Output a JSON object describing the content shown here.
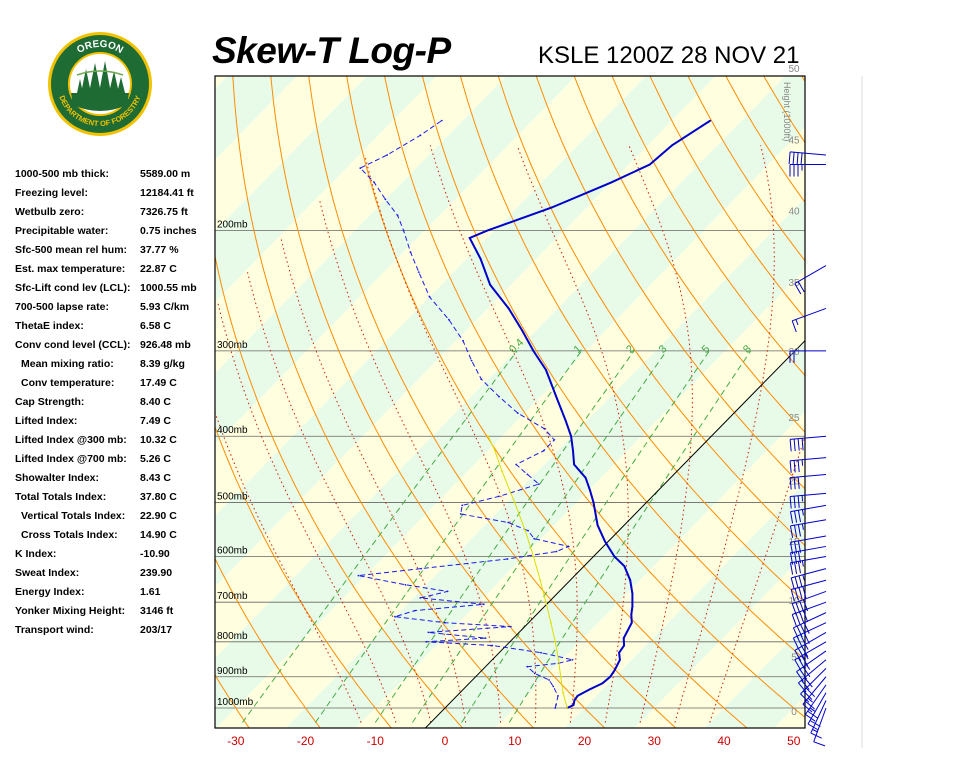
{
  "header": {
    "title": "Skew-T Log-P",
    "station": "KSLE 1200Z 28 NOV 21"
  },
  "logo": {
    "top_text": "OREGON",
    "bottom_text": "DEPARTMENT OF FORESTRY"
  },
  "indices": [
    {
      "label": "1000-500 mb thick:",
      "value": "5589.00 m"
    },
    {
      "label": "Freezing level:",
      "value": "12184.41 ft"
    },
    {
      "label": "Wetbulb zero:",
      "value": "7326.75 ft"
    },
    {
      "label": "Precipitable water:",
      "value": "0.75 inches"
    },
    {
      "label": "Sfc-500 mean rel hum:",
      "value": "37.77 %"
    },
    {
      "label": "Est. max temperature:",
      "value": "22.87 C"
    },
    {
      "label": "Sfc-Lift cond lev (LCL):",
      "value": "1000.55 mb"
    },
    {
      "label": "700-500 lapse rate:",
      "value": "5.93 C/km"
    },
    {
      "label": "ThetaE index:",
      "value": "6.58 C"
    },
    {
      "label": "Conv cond level (CCL):",
      "value": "926.48 mb"
    },
    {
      "label": "Mean mixing ratio:",
      "value": "8.39 g/kg",
      "indent": true
    },
    {
      "label": "Conv temperature:",
      "value": "17.49 C",
      "indent": true
    },
    {
      "label": "Cap Strength:",
      "value": "8.40 C"
    },
    {
      "label": "Lifted Index:",
      "value": "7.49 C"
    },
    {
      "label": "Lifted Index @300 mb:",
      "value": "10.32 C"
    },
    {
      "label": "Lifted Index @700 mb:",
      "value": "5.26 C"
    },
    {
      "label": "Showalter Index:",
      "value": "8.43 C"
    },
    {
      "label": "Total Totals Index:",
      "value": "37.80 C"
    },
    {
      "label": "Vertical Totals Index:",
      "value": "22.90 C",
      "indent": true
    },
    {
      "label": "Cross Totals Index:",
      "value": "14.90 C",
      "indent": true
    },
    {
      "label": "K Index:",
      "value": "-10.90"
    },
    {
      "label": "Sweat Index:",
      "value": "239.90"
    },
    {
      "label": "Energy Index:",
      "value": "1.61"
    },
    {
      "label": "Yonker Mixing Height:",
      "value": "3146 ft"
    },
    {
      "label": "Transport wind:",
      "value": "203/17"
    }
  ],
  "chart_data": {
    "type": "line",
    "title": "Skew-T Log-P",
    "subtitle": "KSLE 1200Z 28 NOV 21",
    "xlabel": "",
    "ylabel": "",
    "x_axis_units": "C",
    "xlim": [
      -30,
      50
    ],
    "x_ticks": [
      "-30",
      "-20",
      "-10",
      "0",
      "10",
      "20",
      "30",
      "40",
      "50"
    ],
    "y_scale": "log-pressure",
    "ylim_mb": [
      1050,
      135
    ],
    "pressure_labels": [
      "200mb",
      "300mb",
      "400mb",
      "500mb",
      "600mb",
      "700mb",
      "800mb",
      "900mb",
      "1000mb"
    ],
    "height_axis_label": "Height (1000ft)",
    "height_ticks": [
      "0",
      "5",
      "10",
      "15",
      "20",
      "25",
      "30",
      "35",
      "40",
      "45",
      "50"
    ],
    "mixing_ratio_labels": [
      "0.4",
      "1",
      "2",
      "3",
      "5",
      "8"
    ],
    "colors": {
      "background_yellow": "#ffffe0",
      "background_green": "#e8fbe8",
      "isotherm": "#d2691e",
      "dry_adiabat": "#ff8c00",
      "moist_adiabat": "#cc2200",
      "mixing_ratio": "#44aa44",
      "temperature": "#0000cc",
      "dewpoint": "#1a1aee",
      "parcel": "#dddd00",
      "axis_red": "#cc0000",
      "wind": "#0000cc"
    },
    "series": [
      {
        "style": "temperature",
        "points": [
          {
            "p": 1000,
            "t": 17.5
          },
          {
            "p": 990,
            "t": 18.0
          },
          {
            "p": 975,
            "t": 17.5
          },
          {
            "p": 960,
            "t": 17.3
          },
          {
            "p": 940,
            "t": 18.1
          },
          {
            "p": 920,
            "t": 19.1
          },
          {
            "p": 900,
            "t": 19.3
          },
          {
            "p": 880,
            "t": 19.0
          },
          {
            "p": 850,
            "t": 18.3
          },
          {
            "p": 830,
            "t": 17.2
          },
          {
            "p": 810,
            "t": 16.9
          },
          {
            "p": 790,
            "t": 15.8
          },
          {
            "p": 770,
            "t": 15.3
          },
          {
            "p": 750,
            "t": 14.8
          },
          {
            "p": 730,
            "t": 13.6
          },
          {
            "p": 710,
            "t": 12.6
          },
          {
            "p": 680,
            "t": 10.8
          },
          {
            "p": 650,
            "t": 8.6
          },
          {
            "p": 620,
            "t": 5.8
          },
          {
            "p": 600,
            "t": 3.0
          },
          {
            "p": 570,
            "t": -0.5
          },
          {
            "p": 540,
            "t": -3.8
          },
          {
            "p": 500,
            "t": -7.6
          },
          {
            "p": 480,
            "t": -9.8
          },
          {
            "p": 460,
            "t": -12.2
          },
          {
            "p": 440,
            "t": -15.7
          },
          {
            "p": 420,
            "t": -17.8
          },
          {
            "p": 400,
            "t": -20.1
          },
          {
            "p": 380,
            "t": -23.0
          },
          {
            "p": 350,
            "t": -27.8
          },
          {
            "p": 320,
            "t": -33.0
          },
          {
            "p": 300,
            "t": -37.5
          },
          {
            "p": 280,
            "t": -42.0
          },
          {
            "p": 260,
            "t": -47.0
          },
          {
            "p": 240,
            "t": -53.0
          },
          {
            "p": 220,
            "t": -58.0
          },
          {
            "p": 205,
            "t": -62.5
          },
          {
            "p": 200,
            "t": -61.0
          },
          {
            "p": 185,
            "t": -55.0
          },
          {
            "p": 170,
            "t": -50.0
          },
          {
            "p": 160,
            "t": -47.0
          },
          {
            "p": 150,
            "t": -46.5
          },
          {
            "p": 138,
            "t": -44.5
          }
        ]
      },
      {
        "style": "dewpoint",
        "points": [
          {
            "p": 1000,
            "t": 15.8
          },
          {
            "p": 990,
            "t": 15.5
          },
          {
            "p": 960,
            "t": 14.5
          },
          {
            "p": 930,
            "t": 12.5
          },
          {
            "p": 910,
            "t": 11.0
          },
          {
            "p": 890,
            "t": 8.0
          },
          {
            "p": 870,
            "t": 6.0
          },
          {
            "p": 860,
            "t": 10.0
          },
          {
            "p": 850,
            "t": 11.5
          },
          {
            "p": 830,
            "t": 6.0
          },
          {
            "p": 810,
            "t": -2.0
          },
          {
            "p": 800,
            "t": -12.0
          },
          {
            "p": 790,
            "t": -4.0
          },
          {
            "p": 775,
            "t": -13.0
          },
          {
            "p": 760,
            "t": -2.0
          },
          {
            "p": 750,
            "t": -12.0
          },
          {
            "p": 735,
            "t": -20.0
          },
          {
            "p": 720,
            "t": -18.0
          },
          {
            "p": 705,
            "t": -9.0
          },
          {
            "p": 690,
            "t": -19.0
          },
          {
            "p": 675,
            "t": -16.0
          },
          {
            "p": 660,
            "t": -23.0
          },
          {
            "p": 640,
            "t": -31.0
          },
          {
            "p": 625,
            "t": -23.0
          },
          {
            "p": 605,
            "t": -12.0
          },
          {
            "p": 590,
            "t": -6.0
          },
          {
            "p": 580,
            "t": -5.0
          },
          {
            "p": 565,
            "t": -11.0
          },
          {
            "p": 550,
            "t": -13.0
          },
          {
            "p": 535,
            "t": -17.0
          },
          {
            "p": 520,
            "t": -25.0
          },
          {
            "p": 505,
            "t": -26.0
          },
          {
            "p": 490,
            "t": -22.0
          },
          {
            "p": 470,
            "t": -18.0
          },
          {
            "p": 455,
            "t": -21.0
          },
          {
            "p": 440,
            "t": -24.0
          },
          {
            "p": 420,
            "t": -22.0
          },
          {
            "p": 405,
            "t": -22.0
          },
          {
            "p": 390,
            "t": -25.0
          },
          {
            "p": 370,
            "t": -31.0
          },
          {
            "p": 350,
            "t": -36.0
          },
          {
            "p": 330,
            "t": -41.0
          },
          {
            "p": 310,
            "t": -45.0
          },
          {
            "p": 290,
            "t": -49.0
          },
          {
            "p": 270,
            "t": -54.0
          },
          {
            "p": 250,
            "t": -60.0
          },
          {
            "p": 230,
            "t": -65.0
          },
          {
            "p": 215,
            "t": -69.0
          },
          {
            "p": 200,
            "t": -73.0
          },
          {
            "p": 190,
            "t": -76.0
          },
          {
            "p": 180,
            "t": -80.0
          },
          {
            "p": 170,
            "t": -84.0
          },
          {
            "p": 162,
            "t": -88.0
          },
          {
            "p": 155,
            "t": -86.0
          },
          {
            "p": 145,
            "t": -84.0
          },
          {
            "p": 138,
            "t": -83.0
          }
        ]
      },
      {
        "style": "parcel",
        "points": [
          {
            "p": 1000,
            "t": 17.5
          },
          {
            "p": 950,
            "t": 14.8
          },
          {
            "p": 900,
            "t": 12.2
          },
          {
            "p": 850,
            "t": 9.5
          },
          {
            "p": 800,
            "t": 6.5
          },
          {
            "p": 750,
            "t": 3.2
          },
          {
            "p": 700,
            "t": -0.4
          },
          {
            "p": 650,
            "t": -4.3
          },
          {
            "p": 600,
            "t": -8.6
          },
          {
            "p": 550,
            "t": -13.4
          },
          {
            "p": 500,
            "t": -18.9
          },
          {
            "p": 450,
            "t": -25.1
          },
          {
            "p": 420,
            "t": -29.0
          },
          {
            "p": 400,
            "t": -32.0
          }
        ]
      }
    ],
    "wind_barbs": [
      {
        "p": 1000,
        "dir": 200,
        "kt": 10
      },
      {
        "p": 975,
        "dir": 205,
        "kt": 15
      },
      {
        "p": 950,
        "dir": 210,
        "kt": 20
      },
      {
        "p": 925,
        "dir": 215,
        "kt": 25
      },
      {
        "p": 900,
        "dir": 220,
        "kt": 25
      },
      {
        "p": 875,
        "dir": 225,
        "kt": 30
      },
      {
        "p": 850,
        "dir": 230,
        "kt": 30
      },
      {
        "p": 825,
        "dir": 235,
        "kt": 35
      },
      {
        "p": 800,
        "dir": 240,
        "kt": 35
      },
      {
        "p": 775,
        "dir": 240,
        "kt": 35
      },
      {
        "p": 750,
        "dir": 245,
        "kt": 40
      },
      {
        "p": 725,
        "dir": 245,
        "kt": 40
      },
      {
        "p": 700,
        "dir": 250,
        "kt": 40
      },
      {
        "p": 675,
        "dir": 250,
        "kt": 40
      },
      {
        "p": 650,
        "dir": 255,
        "kt": 40
      },
      {
        "p": 625,
        "dir": 255,
        "kt": 35
      },
      {
        "p": 600,
        "dir": 260,
        "kt": 35
      },
      {
        "p": 580,
        "dir": 260,
        "kt": 30
      },
      {
        "p": 560,
        "dir": 260,
        "kt": 30
      },
      {
        "p": 530,
        "dir": 260,
        "kt": 35
      },
      {
        "p": 505,
        "dir": 260,
        "kt": 35
      },
      {
        "p": 485,
        "dir": 265,
        "kt": 35
      },
      {
        "p": 455,
        "dir": 265,
        "kt": 30
      },
      {
        "p": 430,
        "dir": 265,
        "kt": 35
      },
      {
        "p": 400,
        "dir": 265,
        "kt": 40
      },
      {
        "p": 300,
        "dir": 270,
        "kt": 20
      },
      {
        "p": 260,
        "dir": 250,
        "kt": 15
      },
      {
        "p": 225,
        "dir": 240,
        "kt": 20
      },
      {
        "p": 160,
        "dir": 270,
        "kt": 35
      },
      {
        "p": 155,
        "dir": 275,
        "kt": 40
      }
    ]
  }
}
